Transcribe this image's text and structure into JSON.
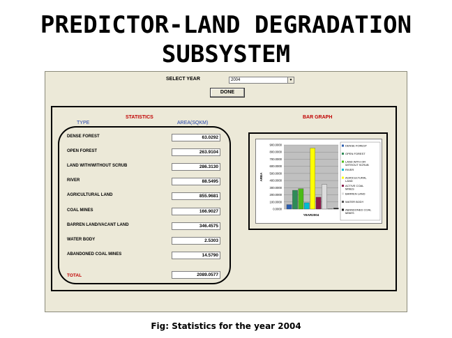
{
  "title": {
    "line1": "PREDICTOR-LAND DEGRADATION",
    "line2": "SUBSYSTEM"
  },
  "controls": {
    "select_year_label": "SELECT YEAR",
    "year_value": "2004",
    "done_label": "DONE"
  },
  "stats": {
    "heading": "STATISTICS",
    "col_type": "TYPE",
    "col_area": "AREA(SQKM)",
    "rows": [
      {
        "label": "DENSE FOREST",
        "value": "63.0292"
      },
      {
        "label": "OPEN FOREST",
        "value": "263.9104"
      },
      {
        "label": "LAND WITH/WITHOUT SCRUB",
        "value": "286.3130"
      },
      {
        "label": "RIVER",
        "value": "88.5495"
      },
      {
        "label": "AGRICULTURAL LAND",
        "value": "855.9681"
      },
      {
        "label": "COAL MINES",
        "value": "166.9027"
      },
      {
        "label": "BARREN LAND/VACANT LAND",
        "value": "346.4575"
      },
      {
        "label": "WATER BODY",
        "value": "2.5303"
      },
      {
        "label": "ABANDONED COAL MINES",
        "value": "14.5790"
      }
    ],
    "total_label": "TOTAL",
    "total_value": "2089.0577"
  },
  "bar_graph": {
    "heading": "BAR GRAPH"
  },
  "chart_data": {
    "type": "bar",
    "xlabel": "YEAR2004",
    "ylabel": "AREA",
    "ylim": [
      0,
      900
    ],
    "yticks": [
      "900.0000",
      "800.0000",
      "700.0000",
      "600.0000",
      "500.0000",
      "400.0000",
      "300.0000",
      "200.0000",
      "100.0000",
      "0.0000"
    ],
    "grid": true,
    "legend_position": "right",
    "series": [
      {
        "name": "DENSE FOREST",
        "value": 63.0292,
        "color": "#2a5db0"
      },
      {
        "name": "OPEN FOREST",
        "value": 263.9104,
        "color": "#2e8b57"
      },
      {
        "name": "LAND WITH OR WITHOUT SCRUB",
        "value": 286.313,
        "color": "#4cbb17"
      },
      {
        "name": "RIVER",
        "value": 88.5495,
        "color": "#00bcd4"
      },
      {
        "name": "AGRICULTURAL LAND",
        "value": 855.9681,
        "color": "#ffff00"
      },
      {
        "name": "ACTIVE COAL MINES",
        "value": 166.9027,
        "color": "#8b1a4a"
      },
      {
        "name": "BARREN LAND",
        "value": 346.4575,
        "color": "#dcdcdc"
      },
      {
        "name": "WATER BODY",
        "value": 2.5303,
        "color": "#555555"
      },
      {
        "name": "ABANDONED COAL MINES",
        "value": 14.579,
        "color": "#1a1a1a"
      }
    ]
  },
  "caption": "Fig: Statistics for the year 2004"
}
